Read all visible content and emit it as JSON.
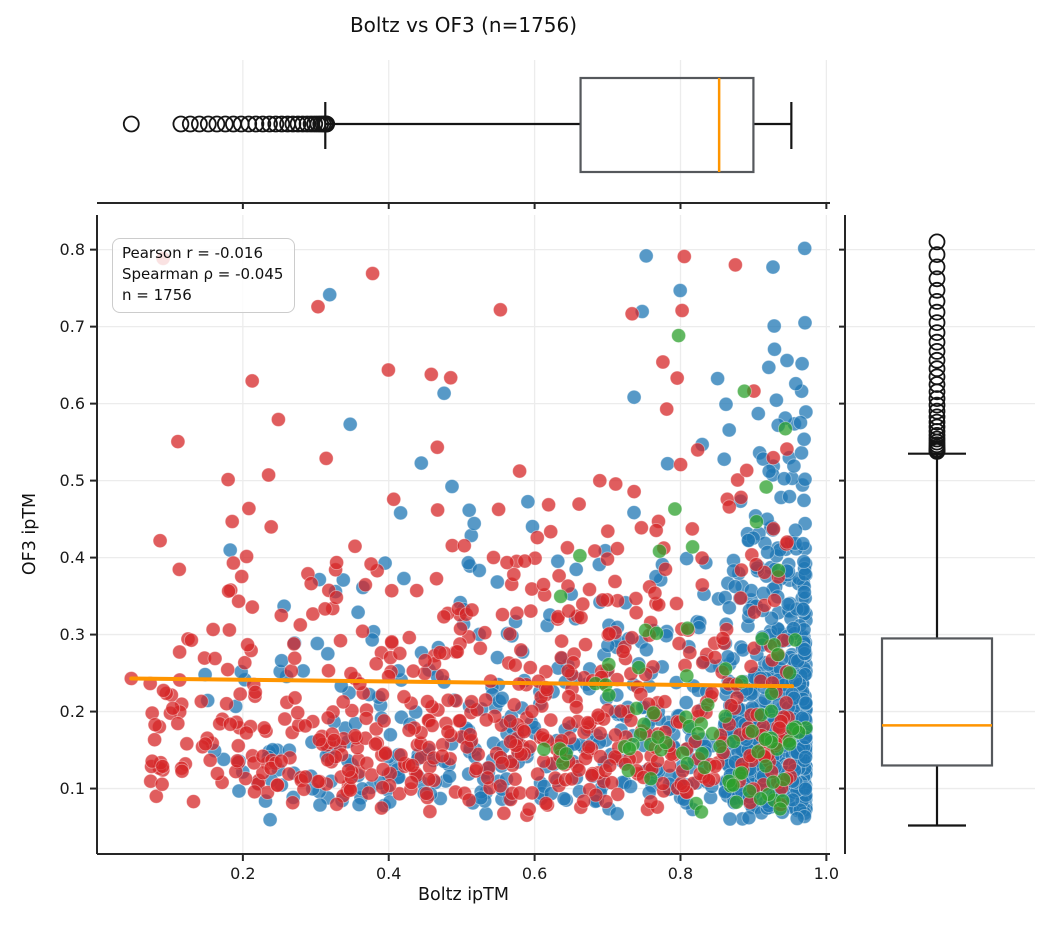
{
  "chart_data": {
    "type": "scatter",
    "subtype": "scatter_with_marginal_boxplots_and_regression",
    "title": "Boltz vs OF3 (n=1756)",
    "xlabel": "Boltz ipTM",
    "ylabel": "OF3 ipTM",
    "n": 1756,
    "grid": true,
    "xlim": [
      0.0,
      1.005
    ],
    "ylim": [
      0.015,
      0.845
    ],
    "x_tick_values": [
      0.2,
      0.4,
      0.6,
      0.8,
      1.0
    ],
    "x_tick_labels": [
      "0.2",
      "0.4",
      "0.6",
      "0.8",
      "1.0"
    ],
    "y_tick_values": [
      0.1,
      0.2,
      0.3,
      0.4,
      0.5,
      0.6,
      0.7,
      0.8
    ],
    "y_tick_labels": [
      "0.1",
      "0.2",
      "0.3",
      "0.4",
      "0.5",
      "0.6",
      "0.7",
      "0.8"
    ],
    "annotation": {
      "pearson": "Pearson r = -0.016",
      "spearman": "Spearman ρ = -0.045",
      "n_label": "n = 1756",
      "pearson_r": -0.016,
      "spearman_rho": -0.045
    },
    "regression_line": {
      "x1": 0.047,
      "y1": 0.243,
      "x2": 0.953,
      "y2": 0.233
    },
    "boxplot_x": {
      "axis": "Boltz ipTM",
      "orientation": "horizontal",
      "whisker_low": 0.313,
      "q1": 0.663,
      "median": 0.853,
      "q3": 0.9,
      "whisker_high": 0.952,
      "outliers_isolated": [
        0.047
      ],
      "outlier_cluster_min": 0.115,
      "outlier_cluster_max": 0.315,
      "outlier_cluster_count": 27
    },
    "boxplot_y": {
      "axis": "OF3 ipTM",
      "orientation": "vertical",
      "whisker_low": 0.052,
      "q1": 0.13,
      "median": 0.182,
      "q3": 0.295,
      "whisker_high": 0.535,
      "outlier_min": 0.538,
      "outlier_max": 0.81,
      "outlier_count": 32
    },
    "point_radius": 7,
    "seed": 7,
    "colors": {
      "blue": "#1f77b4",
      "red": "#d62728",
      "green": "#2ca02c",
      "point_alpha": 0.75,
      "regression": "#ff9500",
      "median": "#ff9500",
      "box_edge": "#55585c",
      "whisker": "#151515",
      "grid": "#ececec",
      "spine": "#262626",
      "text": "#1a1a1a"
    },
    "series": [
      {
        "name": "blue",
        "color": "#1f77b4",
        "count": 1015,
        "x_dist": {
          "type": "mix",
          "parts": [
            {
              "w": 0.54,
              "type": "pow_hi",
              "hi": 0.972,
              "range": 0.112,
              "exp": 1.9
            },
            {
              "w": 0.46,
              "type": "pow_lo",
              "lo": 0.14,
              "range": 0.83,
              "exp": 0.62
            }
          ]
        },
        "y_dist": {
          "type": "lognorm",
          "base": 0.048,
          "scale": 0.135,
          "sigma": 0.75,
          "min": 0.046,
          "max": 0.808
        }
      },
      {
        "name": "red",
        "color": "#d62728",
        "count": 650,
        "x_dist": {
          "type": "pow_lo",
          "lo": 0.07,
          "range": 0.885,
          "exp": 0.8,
          "max": 0.955
        },
        "y_dist": {
          "type": "lognorm",
          "base": 0.05,
          "scale": 0.142,
          "sigma": 0.7,
          "min": 0.05,
          "max": 0.8
        }
      },
      {
        "name": "green",
        "color": "#2ca02c",
        "count": 90,
        "x_dist": {
          "type": "pow_lo",
          "lo": 0.6,
          "range": 0.372,
          "exp": 0.48
        },
        "y_dist": {
          "type": "lognorm",
          "base": 0.05,
          "scale": 0.13,
          "sigma": 0.75,
          "min": 0.05,
          "max": 0.78
        }
      }
    ],
    "fixed_points": [
      {
        "series": "red",
        "x": 0.047,
        "y": 0.243
      }
    ]
  }
}
